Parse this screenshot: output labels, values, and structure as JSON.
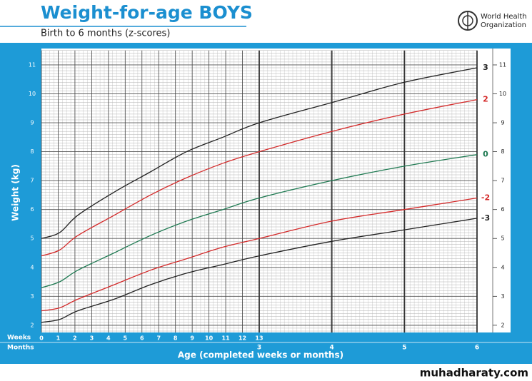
{
  "header": {
    "title": "Weight-for-age BOYS",
    "subtitle": "Birth to 6 months (z-scores)",
    "org_line1": "World Health",
    "org_line2": "Organization"
  },
  "watermark": "muhadharaty.com",
  "chart_data": {
    "type": "line",
    "y_label": "Weight (kg)",
    "x_label": "Age (completed weeks or months)",
    "weeks_label": "Weeks",
    "months_label": "Months",
    "x": [
      0,
      0.25,
      0.5,
      1,
      1.5,
      2,
      2.5,
      3,
      4,
      5,
      6
    ],
    "series": [
      {
        "name": "3",
        "color": "#222222",
        "values": [
          5.0,
          5.2,
          5.8,
          6.6,
          7.3,
          8.0,
          8.5,
          9.0,
          9.7,
          10.4,
          10.9
        ]
      },
      {
        "name": "2",
        "color": "#d42a2a",
        "values": [
          4.4,
          4.6,
          5.1,
          5.8,
          6.5,
          7.1,
          7.6,
          8.0,
          8.7,
          9.3,
          9.8
        ]
      },
      {
        "name": "0",
        "color": "#1f7a52",
        "values": [
          3.3,
          3.5,
          3.9,
          4.5,
          5.1,
          5.6,
          6.0,
          6.4,
          7.0,
          7.5,
          7.9
        ]
      },
      {
        "name": "-2",
        "color": "#d42a2a",
        "values": [
          2.5,
          2.6,
          2.9,
          3.4,
          3.9,
          4.3,
          4.7,
          5.0,
          5.6,
          6.0,
          6.4
        ]
      },
      {
        "name": "-3",
        "color": "#222222",
        "values": [
          2.1,
          2.2,
          2.5,
          2.9,
          3.4,
          3.8,
          4.1,
          4.4,
          4.9,
          5.3,
          5.7
        ]
      }
    ],
    "xlim": [
      0,
      6
    ],
    "ylim": [
      1.75,
      11.5
    ],
    "xticks": [
      3,
      4,
      5,
      6
    ],
    "week_ticks": [
      {
        "value": 0,
        "label": "0"
      },
      {
        "value": 0.2308,
        "label": "1"
      },
      {
        "value": 0.4615,
        "label": "2"
      },
      {
        "value": 0.6923,
        "label": "3"
      },
      {
        "value": 0.9231,
        "label": "4"
      },
      {
        "value": 1.1538,
        "label": "5"
      },
      {
        "value": 1.3846,
        "label": "6"
      },
      {
        "value": 1.6154,
        "label": "7"
      },
      {
        "value": 1.8462,
        "label": "8"
      },
      {
        "value": 2.0769,
        "label": "9"
      },
      {
        "value": 2.3077,
        "label": "10"
      },
      {
        "value": 2.5385,
        "label": "11"
      },
      {
        "value": 2.7692,
        "label": "12"
      },
      {
        "value": 3,
        "label": "13"
      }
    ],
    "yticks": [
      2,
      3,
      4,
      5,
      6,
      7,
      8,
      9,
      10,
      11
    ],
    "grid": true
  }
}
